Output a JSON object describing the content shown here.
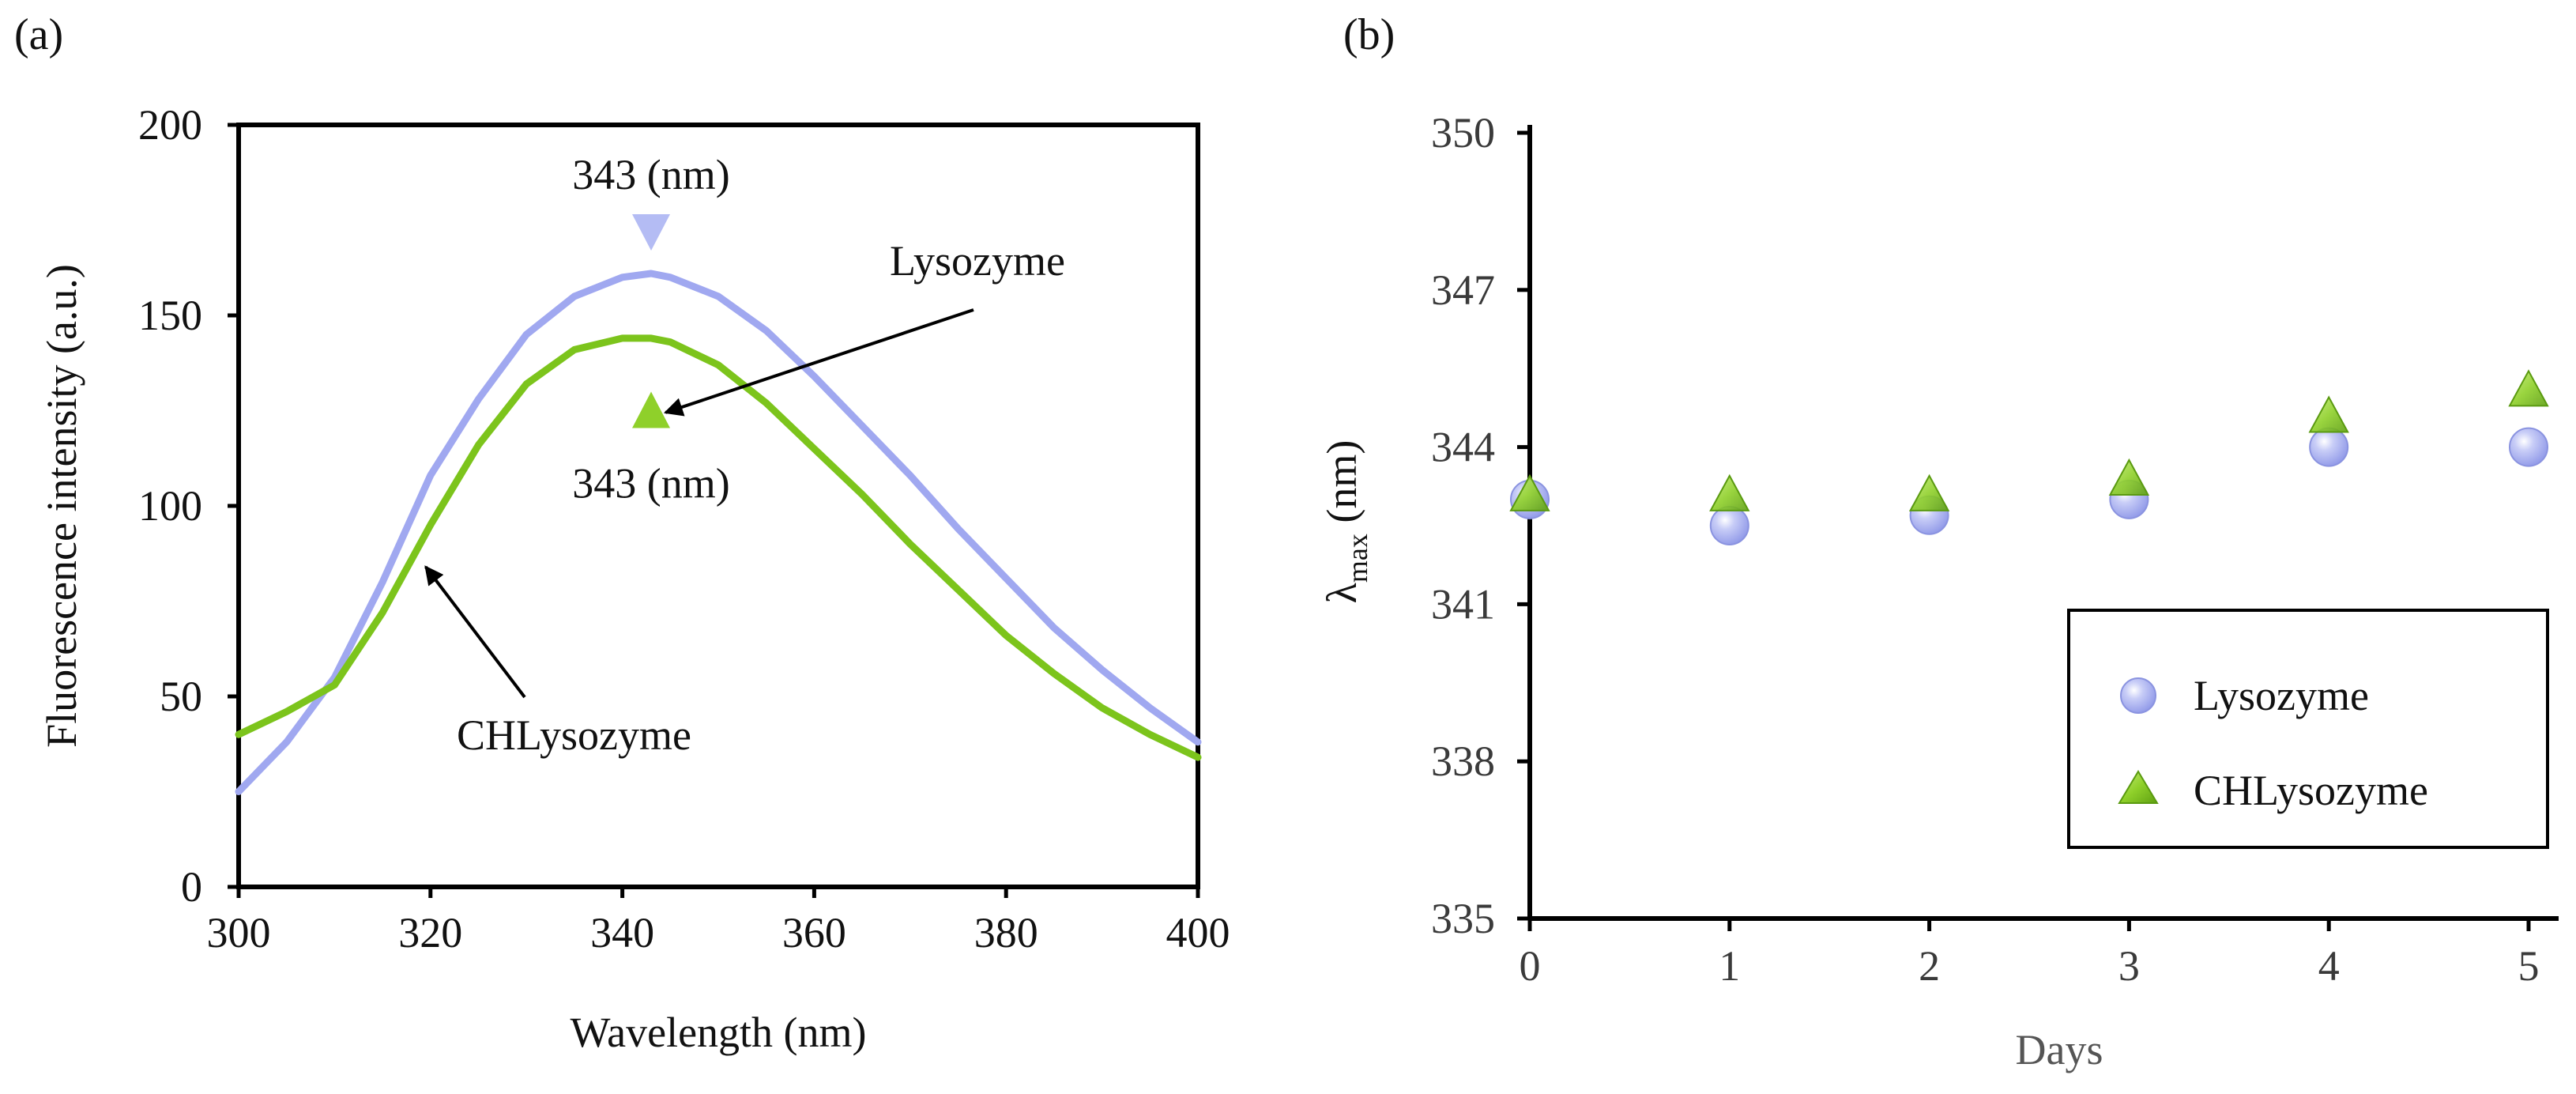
{
  "colors": {
    "lysozyme": "#a0a8f0",
    "chlysozyme": "#7cc41c",
    "lysozyme_marker_fill": "#b4bcf4",
    "chlysozyme_marker_fill": "#8fd02a",
    "axis": "#000000",
    "arrow": "#000000"
  },
  "chart_data": [
    {
      "panel": "(a)",
      "type": "line",
      "xlabel": "Wavelength (nm)",
      "ylabel": "Fluorescence intensity (a.u.)",
      "xlim": [
        300,
        400
      ],
      "ylim": [
        0,
        200
      ],
      "xticks": [
        300,
        320,
        340,
        360,
        380,
        400
      ],
      "yticks": [
        0,
        50,
        100,
        150,
        200
      ],
      "grid": false,
      "series": [
        {
          "name": "Lysozyme",
          "x": [
            300,
            305,
            310,
            315,
            320,
            325,
            330,
            335,
            340,
            343,
            345,
            350,
            355,
            360,
            365,
            370,
            375,
            380,
            385,
            390,
            395,
            400
          ],
          "y": [
            25,
            38,
            55,
            80,
            108,
            128,
            145,
            155,
            160,
            161,
            160,
            155,
            146,
            134,
            121,
            108,
            94,
            81,
            68,
            57,
            47,
            38
          ]
        },
        {
          "name": "CHLysozyme",
          "x": [
            300,
            305,
            310,
            315,
            320,
            325,
            330,
            335,
            340,
            343,
            345,
            350,
            355,
            360,
            365,
            370,
            375,
            380,
            385,
            390,
            395,
            400
          ],
          "y": [
            40,
            46,
            53,
            72,
            95,
            116,
            132,
            141,
            144,
            144,
            143,
            137,
            127,
            115,
            103,
            90,
            78,
            66,
            56,
            47,
            40,
            34
          ]
        }
      ],
      "annotations": {
        "peak_top_label": "343 (nm)",
        "peak_bottom_label": "343 (nm)",
        "peak_x": 343,
        "peak_top_marker_y": 172,
        "peak_bottom_marker_y": 125,
        "lysozyme_label": "Lysozyme",
        "lysozyme_arrow_target": [
          344.5,
          124.5
        ],
        "chlysozyme_label": "CHLysozyme",
        "chlysozyme_arrow_target": [
          319.5,
          84
        ]
      }
    },
    {
      "panel": "(b)",
      "type": "scatter",
      "xlabel": "Days",
      "ylabel_main": "λ",
      "ylabel_sub": "max",
      "ylabel_unit": " (nm)",
      "xlim": [
        0,
        5
      ],
      "ylim": [
        335,
        350
      ],
      "xticks": [
        0,
        1,
        2,
        3,
        4,
        5
      ],
      "yticks": [
        335,
        338,
        341,
        344,
        347,
        350
      ],
      "grid": false,
      "legend_position": "bottom-right",
      "series": [
        {
          "name": "Lysozyme",
          "marker": "circle",
          "x": [
            0,
            1,
            2,
            3,
            4,
            5
          ],
          "y": [
            343.0,
            342.5,
            342.7,
            343.0,
            344.0,
            344.0
          ]
        },
        {
          "name": "CHLysozyme",
          "marker": "triangle",
          "x": [
            0,
            1,
            2,
            3,
            4,
            5
          ],
          "y": [
            343.0,
            343.0,
            343.0,
            343.3,
            344.5,
            345.0
          ]
        }
      ]
    }
  ]
}
